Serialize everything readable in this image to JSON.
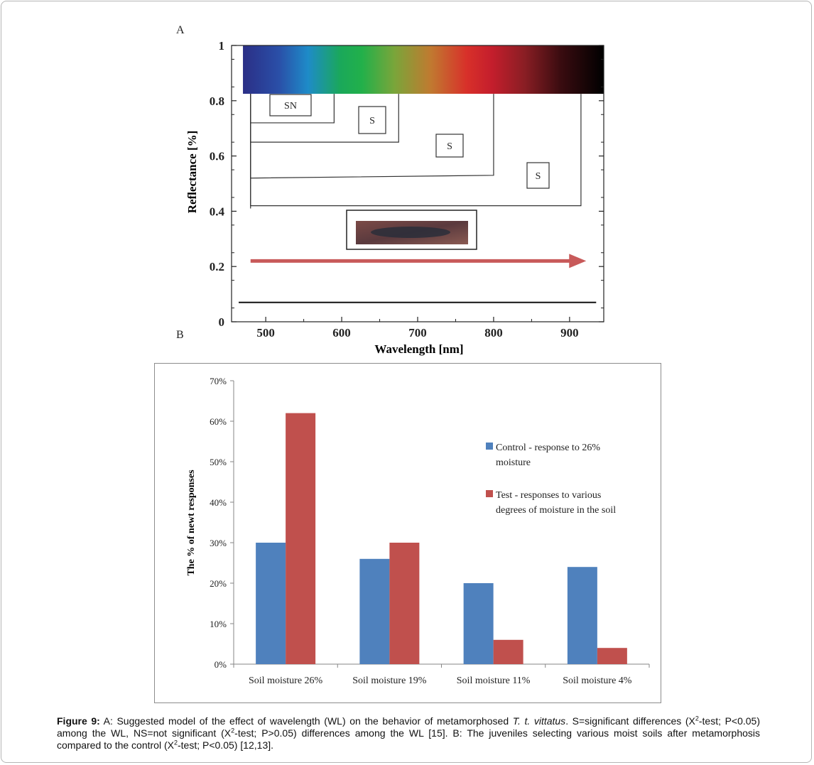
{
  "panel_a_letter": "A",
  "panel_b_letter": "B",
  "chart_data": [
    {
      "type": "diagram",
      "title": "",
      "xlabel": "Wavelength [nm]",
      "ylabel": "Reflectance [%]",
      "xlim": [
        455,
        945
      ],
      "ylim": [
        0,
        1
      ],
      "xticks": [
        "500",
        "600",
        "700",
        "800",
        "900"
      ],
      "yticks": [
        "0",
        "0.2",
        "0.4",
        "0.6",
        "0.8",
        "1"
      ],
      "spectrum_band": {
        "y_range": [
          0.825,
          1.0
        ],
        "x_range": [
          470,
          945
        ]
      },
      "brackets": [
        {
          "label": "SN",
          "x_start": 480,
          "x_end": 590,
          "y_top": 0.825,
          "y_bottom": 0.72
        },
        {
          "label": "S",
          "x_start": 480,
          "x_end": 675,
          "y_top": 0.825,
          "y_bottom": 0.65
        },
        {
          "label": "S",
          "x_start": 480,
          "x_end": 800,
          "y_top": 0.825,
          "y_bottom": 0.53,
          "y_bottom_left": 0.52
        },
        {
          "label": "S",
          "x_start": 480,
          "x_end": 915,
          "y_top": 0.825,
          "y_bottom": 0.42
        }
      ],
      "arrow": {
        "x_start": 480,
        "x_end": 920,
        "y": 0.22
      },
      "baseline": {
        "x_start": 470,
        "x_end": 935,
        "y": 0.07
      }
    },
    {
      "type": "bar",
      "title": "",
      "xlabel": "",
      "ylabel": "The % of newt responses",
      "ylim": [
        0,
        70
      ],
      "yticks": [
        "0%",
        "10%",
        "20%",
        "30%",
        "40%",
        "50%",
        "60%",
        "70%"
      ],
      "categories": [
        "Soil moisture 26%",
        "Soil moisture 19%",
        "Soil moisture 11%",
        "Soil moisture 4%"
      ],
      "series": [
        {
          "name": "Control - response  to 26% moisture",
          "name_lines": [
            "Control - response  to 26%",
            "moisture"
          ],
          "color": "#4f81bd",
          "values": [
            30,
            26,
            20,
            24
          ]
        },
        {
          "name": "Test - responses to various degrees of moisture in the soil",
          "name_lines": [
            "Test - responses to various",
            "degrees of moisture in the soil"
          ],
          "color": "#c0504d",
          "values": [
            62,
            30,
            6,
            4
          ]
        }
      ],
      "legend": "right"
    }
  ],
  "caption": {
    "label": "Figure 9:",
    "t1": " A: Suggested model of the effect of wavelength (WL) on the behavior of metamorphosed ",
    "species": "T. t. vittatus",
    "t2": ". S=significant differences (X",
    "sup1": "2",
    "t3": "-test; P<0.05) among the WL, NS=not significant (X",
    "sup2": "2",
    "t4": "-test; P>0.05) differences among the WL [15]. B: The juveniles selecting various moist soils after metamorphosis compared to the control (X",
    "sup3": "2",
    "t5": "-test; P<0.05) [12,13]."
  }
}
